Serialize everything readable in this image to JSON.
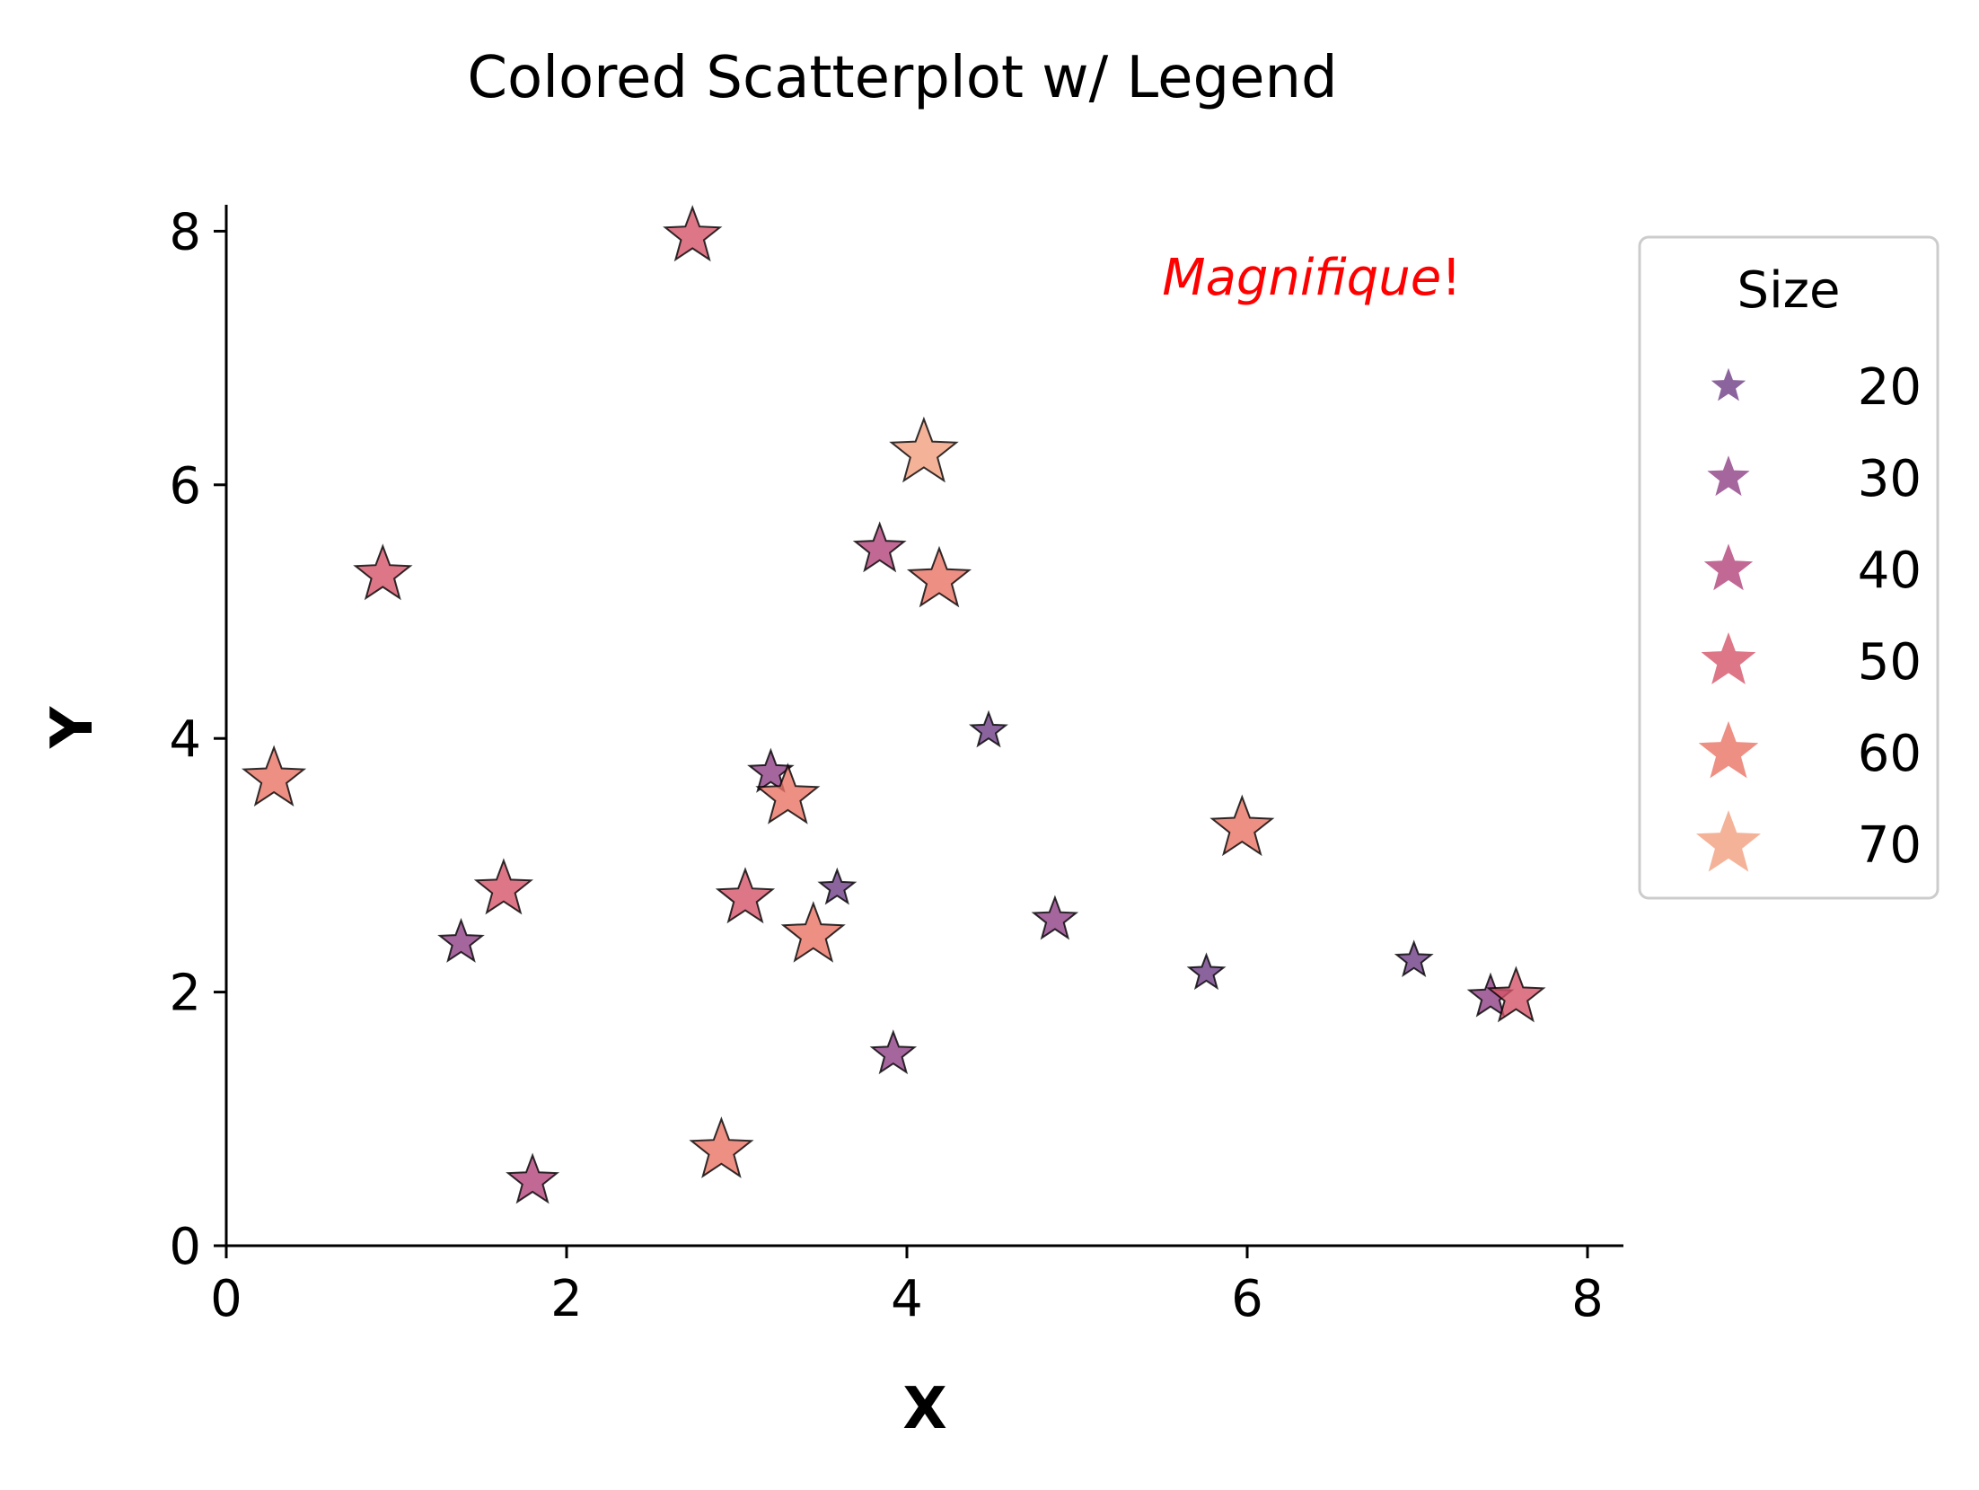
{
  "chart_data": {
    "type": "scatter",
    "title": "Colored Scatterplot w/ Legend",
    "xlabel": "X",
    "ylabel": "Y",
    "xlim": [
      0,
      8.2
    ],
    "ylim": [
      0,
      8.2
    ],
    "xticks": [
      0,
      2,
      4,
      6,
      8
    ],
    "yticks": [
      0,
      2,
      4,
      6,
      8
    ],
    "tick_labels_x": [
      "0",
      "2",
      "4",
      "6",
      "8"
    ],
    "tick_labels_y": [
      "0",
      "2",
      "4",
      "6",
      "8"
    ],
    "grid": false,
    "marker": "star",
    "annotation": {
      "italic_text": "Magnifique",
      "plain_text": "!",
      "color": "#ff0000",
      "x": 5.5,
      "y": 7.5
    },
    "legend": {
      "title": "Size",
      "placement": "outside-right-top",
      "entries": [
        {
          "label": "20",
          "size": 20,
          "color": "#6e3d86"
        },
        {
          "label": "30",
          "size": 30,
          "color": "#8f3f84"
        },
        {
          "label": "40",
          "size": 40,
          "color": "#b24479"
        },
        {
          "label": "50",
          "size": 50,
          "color": "#d45469"
        },
        {
          "label": "60",
          "size": 60,
          "color": "#e87364"
        },
        {
          "label": "70",
          "size": 70,
          "color": "#f19f7f"
        }
      ]
    },
    "points": [
      {
        "x": 0.28,
        "y": 3.68,
        "size": 60
      },
      {
        "x": 0.92,
        "y": 5.29,
        "size": 50
      },
      {
        "x": 1.38,
        "y": 2.39,
        "size": 30
      },
      {
        "x": 1.63,
        "y": 2.81,
        "size": 50
      },
      {
        "x": 1.8,
        "y": 0.51,
        "size": 40
      },
      {
        "x": 2.74,
        "y": 7.96,
        "size": 50
      },
      {
        "x": 2.91,
        "y": 0.75,
        "size": 60
      },
      {
        "x": 3.05,
        "y": 2.74,
        "size": 50
      },
      {
        "x": 3.2,
        "y": 3.73,
        "size": 30
      },
      {
        "x": 3.3,
        "y": 3.54,
        "size": 60
      },
      {
        "x": 3.45,
        "y": 2.45,
        "size": 60
      },
      {
        "x": 3.59,
        "y": 2.82,
        "size": 20
      },
      {
        "x": 3.84,
        "y": 5.49,
        "size": 40
      },
      {
        "x": 3.92,
        "y": 1.51,
        "size": 30
      },
      {
        "x": 4.1,
        "y": 6.25,
        "size": 70
      },
      {
        "x": 4.19,
        "y": 5.25,
        "size": 60
      },
      {
        "x": 4.48,
        "y": 4.06,
        "size": 20
      },
      {
        "x": 4.87,
        "y": 2.57,
        "size": 30
      },
      {
        "x": 5.76,
        "y": 2.15,
        "size": 20
      },
      {
        "x": 5.97,
        "y": 3.29,
        "size": 60
      },
      {
        "x": 6.98,
        "y": 2.25,
        "size": 20
      },
      {
        "x": 7.43,
        "y": 1.96,
        "size": 30
      },
      {
        "x": 7.58,
        "y": 1.96,
        "size": 50
      }
    ]
  }
}
